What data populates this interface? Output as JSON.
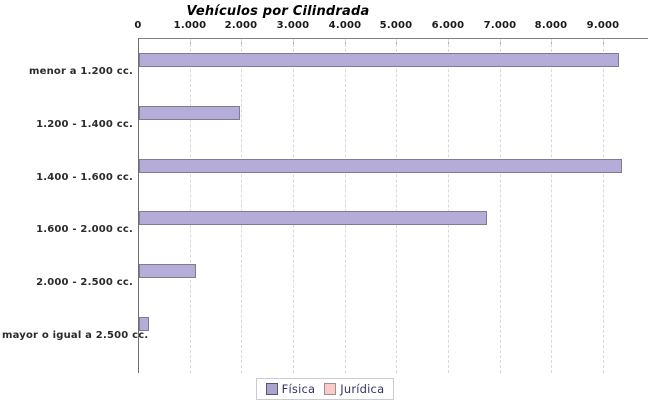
{
  "chart_data": {
    "type": "bar",
    "orientation": "horizontal",
    "title": "Vehículos por Cilindrada",
    "categories": [
      "menor a 1.200 cc.",
      "1.200 - 1.400 cc.",
      "1.400 - 1.600 cc.",
      "1.600 - 2.000 cc.",
      "2.000 - 2.500 cc.",
      "mayor o igual a 2.500 cc."
    ],
    "series": [
      {
        "name": "Física",
        "color": "#b5acd7",
        "border_color": "#7f7b93",
        "values": [
          9250,
          1920,
          9310,
          6700,
          1060,
          150
        ]
      },
      {
        "name": "Jurídica",
        "color": "#f9caca",
        "border_color": "#a98b8b",
        "values": [
          0,
          0,
          0,
          0,
          0,
          0
        ]
      }
    ],
    "x_ticks": [
      "0",
      "1.000",
      "2.000",
      "3.000",
      "4.000",
      "5.000",
      "6.000",
      "7.000",
      "8.000",
      "9.000"
    ],
    "x_tick_values": [
      0,
      1000,
      2000,
      3000,
      4000,
      5000,
      6000,
      7000,
      8000,
      9000
    ],
    "xlim": [
      0,
      9870
    ],
    "grid": "vertical-dashed",
    "legend_position": "bottom"
  },
  "colors": {
    "background": "#ffffff",
    "axis_line": "#6e6e6e",
    "grid_line": "#d9d9d9",
    "legend_text": "#333366",
    "title_text": "#000000"
  }
}
